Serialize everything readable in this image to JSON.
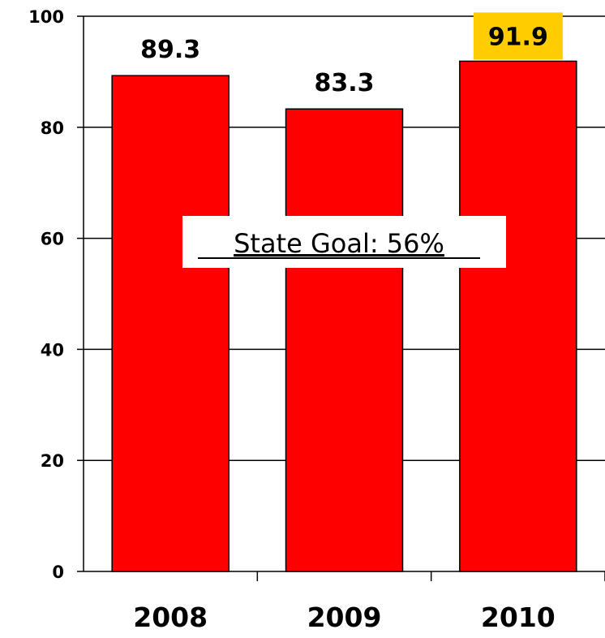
{
  "chart_data": {
    "type": "bar",
    "categories": [
      "2008",
      "2009",
      "2010"
    ],
    "values": [
      89.3,
      83.3,
      91.9
    ],
    "value_labels": [
      "89.3",
      "83.3",
      "91.9"
    ],
    "yticks": [
      0,
      20,
      40,
      60,
      80,
      100
    ],
    "ylim": [
      0,
      100
    ],
    "grid": true,
    "legend": "none",
    "annotation": "State Goal: 56%",
    "colors": {
      "bar": "#ff0000",
      "highlight_label_bg": "#ffcc00",
      "axis": "#000000"
    },
    "highlight_index": 2
  }
}
